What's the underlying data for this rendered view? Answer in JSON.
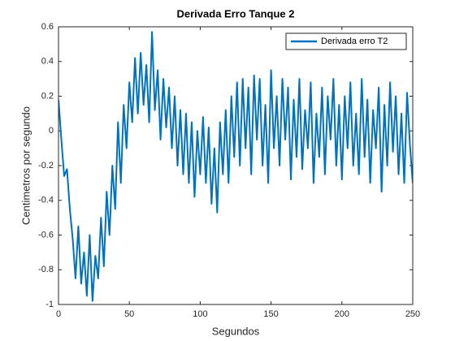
{
  "chart_data": {
    "type": "line",
    "title": "Derivada Erro Tanque 2",
    "xlabel": "Segundos",
    "ylabel": "Centimetros por segundo",
    "legend": "northeast",
    "xlim": [
      0,
      250
    ],
    "xticks": [
      0,
      50,
      100,
      150,
      200,
      250
    ],
    "ylim": [
      -1,
      0.6
    ],
    "yticks": [
      -1,
      -0.8,
      -0.6,
      -0.4,
      -0.2,
      0,
      0.2,
      0.4,
      0.6
    ],
    "x": [
      0,
      2,
      4,
      6,
      8,
      10,
      12,
      14,
      16,
      18,
      20,
      22,
      24,
      26,
      28,
      30,
      32,
      34,
      36,
      38,
      40,
      42,
      44,
      46,
      48,
      50,
      52,
      54,
      56,
      58,
      60,
      62,
      64,
      66,
      68,
      70,
      72,
      74,
      76,
      78,
      80,
      82,
      84,
      86,
      88,
      90,
      92,
      94,
      96,
      98,
      100,
      102,
      104,
      106,
      108,
      110,
      112,
      114,
      116,
      118,
      120,
      122,
      124,
      126,
      128,
      130,
      132,
      134,
      136,
      138,
      140,
      142,
      144,
      146,
      148,
      150,
      152,
      154,
      156,
      158,
      160,
      162,
      164,
      166,
      168,
      170,
      172,
      174,
      176,
      178,
      180,
      182,
      184,
      186,
      188,
      190,
      192,
      194,
      196,
      198,
      200,
      202,
      204,
      206,
      208,
      210,
      212,
      214,
      216,
      218,
      220,
      222,
      224,
      226,
      228,
      230,
      232,
      234,
      236,
      238,
      240,
      242,
      244,
      246,
      248,
      250
    ],
    "series": [
      {
        "name": "Derivada erro T2",
        "color": "#0072bd",
        "values": [
          0.18,
          -0.05,
          -0.26,
          -0.22,
          -0.45,
          -0.62,
          -0.85,
          -0.55,
          -0.88,
          -0.7,
          -0.95,
          -0.6,
          -0.98,
          -0.72,
          -0.85,
          -0.5,
          -0.78,
          -0.35,
          -0.6,
          -0.2,
          -0.45,
          0.05,
          -0.3,
          0.15,
          -0.1,
          0.28,
          0.05,
          0.42,
          0.1,
          0.45,
          0.15,
          0.38,
          0.05,
          0.57,
          0.12,
          0.35,
          -0.05,
          0.3,
          0.02,
          0.25,
          -0.1,
          0.2,
          -0.2,
          0.12,
          -0.25,
          0.1,
          -0.3,
          0.05,
          -0.38,
          0.0,
          -0.25,
          0.08,
          -0.3,
          0.02,
          -0.42,
          -0.1,
          -0.47,
          0.05,
          -0.25,
          0.12,
          -0.3,
          0.2,
          -0.15,
          0.28,
          -0.2,
          0.3,
          -0.1,
          0.25,
          -0.25,
          0.32,
          -0.05,
          0.3,
          -0.2,
          0.15,
          -0.3,
          0.35,
          -0.1,
          0.2,
          -0.2,
          0.3,
          -0.05,
          0.25,
          -0.28,
          0.18,
          -0.15,
          0.3,
          -0.22,
          0.12,
          -0.1,
          0.28,
          -0.3,
          0.1,
          -0.15,
          0.25,
          -0.25,
          0.2,
          -0.05,
          0.3,
          -0.2,
          0.15,
          -0.28,
          0.2,
          -0.1,
          0.28,
          -0.2,
          0.1,
          -0.25,
          0.3,
          -0.15,
          0.18,
          -0.3,
          0.12,
          -0.1,
          0.25,
          -0.35,
          0.15,
          -0.2,
          0.28,
          -0.12,
          0.2,
          -0.25,
          0.1,
          -0.3,
          0.22,
          -0.08,
          -0.3
        ]
      }
    ]
  }
}
